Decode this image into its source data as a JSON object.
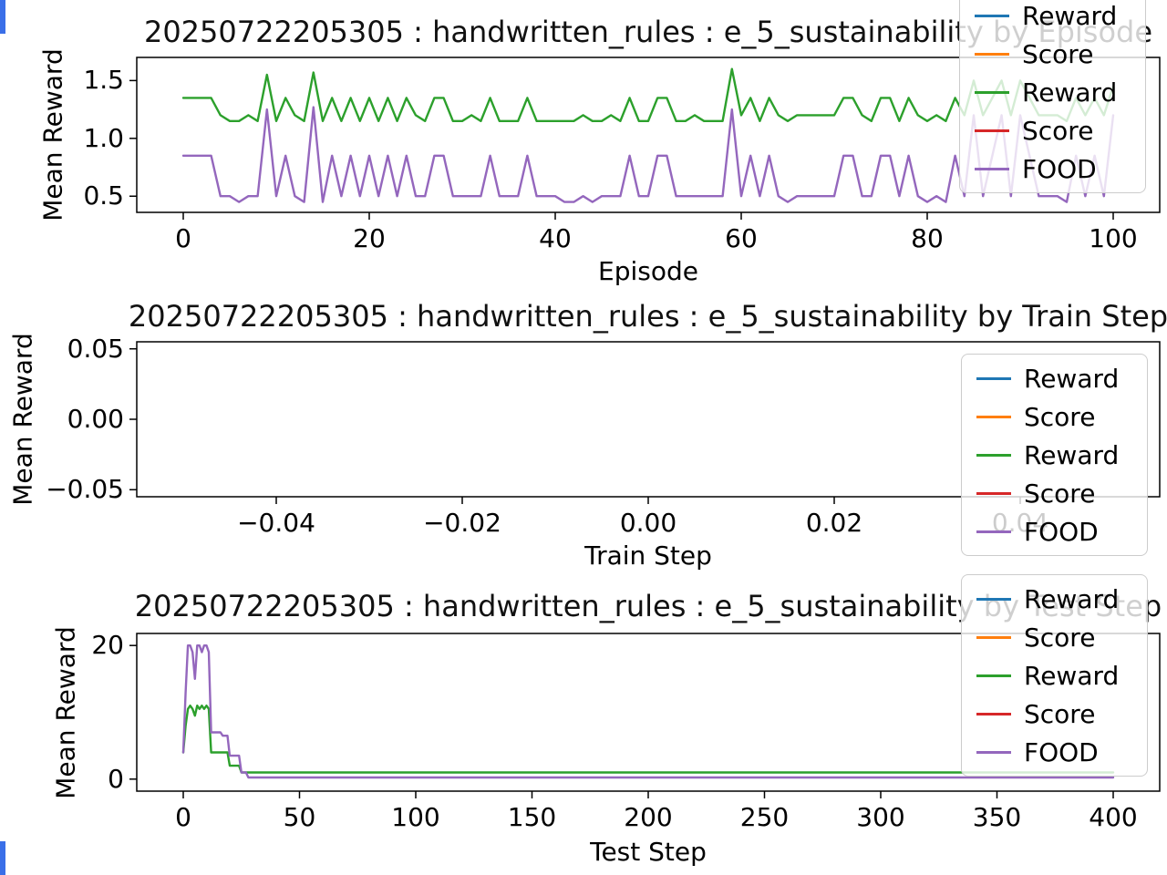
{
  "artifacts": {
    "edge_marker_color": "#3a6fe8"
  },
  "chart_data": [
    {
      "type": "line",
      "title": "20250722205305 : handwritten_rules : e_5_sustainability by Episode",
      "xlabel": "Episode",
      "ylabel": "Mean Reward",
      "xlim": [
        -5,
        105
      ],
      "ylim": [
        0.36,
        1.7
      ],
      "xticks": [
        {
          "v": 0,
          "label": "0"
        },
        {
          "v": 20,
          "label": "20"
        },
        {
          "v": 40,
          "label": "40"
        },
        {
          "v": 60,
          "label": "60"
        },
        {
          "v": 80,
          "label": "80"
        },
        {
          "v": 100,
          "label": "100"
        }
      ],
      "yticks": [
        {
          "v": 0.5,
          "label": "0.5"
        },
        {
          "v": 1.0,
          "label": "1.0"
        },
        {
          "v": 1.5,
          "label": "1.5"
        }
      ],
      "legend": [
        {
          "label": "Reward",
          "color": "#1f77b4"
        },
        {
          "label": "Score",
          "color": "#ff7f0e"
        },
        {
          "label": "Reward",
          "color": "#2ca02c"
        },
        {
          "label": "Score",
          "color": "#d62728"
        },
        {
          "label": "FOOD",
          "color": "#9467bd"
        }
      ],
      "series": [
        {
          "name": "Reward",
          "color": "#1f77b4",
          "x": [],
          "y": []
        },
        {
          "name": "Score",
          "color": "#ff7f0e",
          "x": [],
          "y": []
        },
        {
          "name": "Reward",
          "color": "#2ca02c",
          "x": [
            0,
            1,
            2,
            3,
            4,
            5,
            6,
            7,
            8,
            9,
            10,
            11,
            12,
            13,
            14,
            15,
            16,
            17,
            18,
            19,
            20,
            21,
            22,
            23,
            24,
            25,
            26,
            27,
            28,
            29,
            30,
            31,
            32,
            33,
            34,
            35,
            36,
            37,
            38,
            39,
            40,
            41,
            42,
            43,
            44,
            45,
            46,
            47,
            48,
            49,
            50,
            51,
            52,
            53,
            54,
            55,
            56,
            57,
            58,
            59,
            60,
            61,
            62,
            63,
            64,
            65,
            66,
            67,
            68,
            69,
            70,
            71,
            72,
            73,
            74,
            75,
            76,
            77,
            78,
            79,
            80,
            81,
            82,
            83,
            84,
            85,
            86,
            87,
            88,
            89,
            90,
            91,
            92,
            93,
            94,
            95,
            96,
            97,
            98,
            99,
            100
          ],
          "y": [
            1.35,
            1.35,
            1.35,
            1.35,
            1.2,
            1.15,
            1.15,
            1.2,
            1.15,
            1.55,
            1.15,
            1.35,
            1.2,
            1.15,
            1.57,
            1.15,
            1.35,
            1.15,
            1.35,
            1.15,
            1.35,
            1.15,
            1.35,
            1.15,
            1.35,
            1.2,
            1.15,
            1.35,
            1.35,
            1.15,
            1.15,
            1.2,
            1.15,
            1.35,
            1.15,
            1.15,
            1.15,
            1.35,
            1.15,
            1.15,
            1.15,
            1.15,
            1.15,
            1.2,
            1.15,
            1.15,
            1.2,
            1.15,
            1.35,
            1.15,
            1.15,
            1.35,
            1.35,
            1.15,
            1.15,
            1.2,
            1.15,
            1.15,
            1.15,
            1.6,
            1.2,
            1.35,
            1.15,
            1.35,
            1.2,
            1.15,
            1.2,
            1.2,
            1.2,
            1.2,
            1.2,
            1.35,
            1.35,
            1.2,
            1.15,
            1.35,
            1.35,
            1.15,
            1.35,
            1.2,
            1.15,
            1.2,
            1.15,
            1.35,
            1.2,
            1.5,
            1.2,
            1.35,
            1.5,
            1.2,
            1.5,
            1.35,
            1.2,
            1.2,
            1.2,
            1.15,
            1.35,
            1.2,
            1.35,
            1.2,
            1.45
          ]
        },
        {
          "name": "Score",
          "color": "#d62728",
          "x": [],
          "y": []
        },
        {
          "name": "FOOD",
          "color": "#9467bd",
          "x": [
            0,
            1,
            2,
            3,
            4,
            5,
            6,
            7,
            8,
            9,
            10,
            11,
            12,
            13,
            14,
            15,
            16,
            17,
            18,
            19,
            20,
            21,
            22,
            23,
            24,
            25,
            26,
            27,
            28,
            29,
            30,
            31,
            32,
            33,
            34,
            35,
            36,
            37,
            38,
            39,
            40,
            41,
            42,
            43,
            44,
            45,
            46,
            47,
            48,
            49,
            50,
            51,
            52,
            53,
            54,
            55,
            56,
            57,
            58,
            59,
            60,
            61,
            62,
            63,
            64,
            65,
            66,
            67,
            68,
            69,
            70,
            71,
            72,
            73,
            74,
            75,
            76,
            77,
            78,
            79,
            80,
            81,
            82,
            83,
            84,
            85,
            86,
            87,
            88,
            89,
            90,
            91,
            92,
            93,
            94,
            95,
            96,
            97,
            98,
            99,
            100
          ],
          "y": [
            0.85,
            0.85,
            0.85,
            0.85,
            0.5,
            0.5,
            0.45,
            0.5,
            0.5,
            1.25,
            0.5,
            0.85,
            0.5,
            0.45,
            1.27,
            0.45,
            0.85,
            0.5,
            0.85,
            0.5,
            0.85,
            0.5,
            0.85,
            0.5,
            0.85,
            0.5,
            0.5,
            0.85,
            0.85,
            0.5,
            0.5,
            0.5,
            0.5,
            0.85,
            0.5,
            0.5,
            0.5,
            0.85,
            0.5,
            0.5,
            0.5,
            0.45,
            0.45,
            0.5,
            0.45,
            0.5,
            0.5,
            0.5,
            0.85,
            0.5,
            0.5,
            0.85,
            0.85,
            0.5,
            0.5,
            0.5,
            0.5,
            0.5,
            0.5,
            1.25,
            0.5,
            0.85,
            0.5,
            0.85,
            0.5,
            0.45,
            0.5,
            0.5,
            0.5,
            0.5,
            0.5,
            0.85,
            0.85,
            0.5,
            0.5,
            0.85,
            0.85,
            0.5,
            0.85,
            0.5,
            0.45,
            0.5,
            0.45,
            0.85,
            0.5,
            1.2,
            0.5,
            0.85,
            1.2,
            0.5,
            1.2,
            0.85,
            0.5,
            0.5,
            0.5,
            0.45,
            0.85,
            0.5,
            0.85,
            0.5,
            1.2
          ]
        }
      ]
    },
    {
      "type": "line",
      "title": "20250722205305 : handwritten_rules : e_5_sustainability by Train Step",
      "xlabel": "Train Step",
      "ylabel": "Mean Reward",
      "xlim": [
        -0.055,
        0.055
      ],
      "ylim": [
        -0.055,
        0.055
      ],
      "xticks": [
        {
          "v": -0.04,
          "label": "−0.04"
        },
        {
          "v": -0.02,
          "label": "−0.02"
        },
        {
          "v": 0.0,
          "label": "0.00"
        },
        {
          "v": 0.02,
          "label": "0.02"
        },
        {
          "v": 0.04,
          "label": "0.04"
        }
      ],
      "yticks": [
        {
          "v": -0.05,
          "label": "−0.05"
        },
        {
          "v": 0.0,
          "label": "0.00"
        },
        {
          "v": 0.05,
          "label": "0.05"
        }
      ],
      "legend": [
        {
          "label": "Reward",
          "color": "#1f77b4"
        },
        {
          "label": "Score",
          "color": "#ff7f0e"
        },
        {
          "label": "Reward",
          "color": "#2ca02c"
        },
        {
          "label": "Score",
          "color": "#d62728"
        },
        {
          "label": "FOOD",
          "color": "#9467bd"
        }
      ],
      "series": [
        {
          "name": "Reward",
          "color": "#1f77b4",
          "x": [],
          "y": []
        },
        {
          "name": "Score",
          "color": "#ff7f0e",
          "x": [],
          "y": []
        },
        {
          "name": "Reward",
          "color": "#2ca02c",
          "x": [],
          "y": []
        },
        {
          "name": "Score",
          "color": "#d62728",
          "x": [],
          "y": []
        },
        {
          "name": "FOOD",
          "color": "#9467bd",
          "x": [],
          "y": []
        }
      ]
    },
    {
      "type": "line",
      "title": "20250722205305 : handwritten_rules : e_5_sustainability by Test Step",
      "xlabel": "Test Step",
      "ylabel": "Mean Reward",
      "xlim": [
        -20,
        420
      ],
      "ylim": [
        -1.8,
        21.8
      ],
      "xticks": [
        {
          "v": 0,
          "label": "0"
        },
        {
          "v": 50,
          "label": "50"
        },
        {
          "v": 100,
          "label": "100"
        },
        {
          "v": 150,
          "label": "150"
        },
        {
          "v": 200,
          "label": "200"
        },
        {
          "v": 250,
          "label": "250"
        },
        {
          "v": 300,
          "label": "300"
        },
        {
          "v": 350,
          "label": "350"
        },
        {
          "v": 400,
          "label": "400"
        }
      ],
      "yticks": [
        {
          "v": 0,
          "label": "0"
        },
        {
          "v": 20,
          "label": "20"
        }
      ],
      "legend": [
        {
          "label": "Reward",
          "color": "#1f77b4"
        },
        {
          "label": "Score",
          "color": "#ff7f0e"
        },
        {
          "label": "Reward",
          "color": "#2ca02c"
        },
        {
          "label": "Score",
          "color": "#d62728"
        },
        {
          "label": "FOOD",
          "color": "#9467bd"
        }
      ],
      "series": [
        {
          "name": "Reward",
          "color": "#1f77b4",
          "x": [],
          "y": []
        },
        {
          "name": "Score",
          "color": "#ff7f0e",
          "x": [],
          "y": []
        },
        {
          "name": "Reward",
          "color": "#2ca02c",
          "x": [
            0,
            1,
            2,
            3,
            4,
            5,
            6,
            7,
            8,
            9,
            10,
            11,
            12,
            13,
            19,
            20,
            24,
            25,
            27,
            28,
            400
          ],
          "y": [
            4,
            8,
            10.5,
            11,
            10.5,
            9.5,
            11,
            10.5,
            11,
            10.5,
            11,
            10.5,
            4,
            4,
            4,
            2,
            2,
            1,
            1,
            1,
            1
          ]
        },
        {
          "name": "Score",
          "color": "#d62728",
          "x": [],
          "y": []
        },
        {
          "name": "FOOD",
          "color": "#9467bd",
          "x": [
            0,
            1,
            2,
            3,
            4,
            5,
            6,
            7,
            8,
            9,
            10,
            11,
            12,
            13,
            16,
            17,
            19,
            20,
            24,
            25,
            27,
            28,
            400
          ],
          "y": [
            4,
            13,
            20,
            20,
            19,
            15,
            20,
            20,
            19,
            20,
            20,
            19,
            7,
            7,
            7,
            6.5,
            6.5,
            3.5,
            3.5,
            1,
            1,
            0.25,
            0.25
          ]
        }
      ]
    }
  ]
}
